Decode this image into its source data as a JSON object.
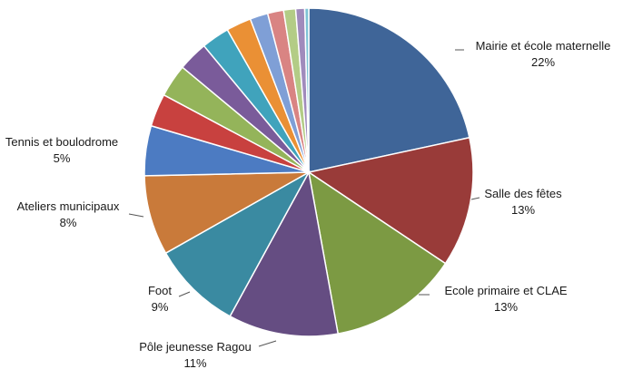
{
  "chart_data": {
    "type": "pie",
    "title": "",
    "legend": "none",
    "slices": [
      {
        "label": "Mairie et école maternelle",
        "value": 22,
        "value_label": "22%",
        "color": "#3f6598",
        "labeled": true
      },
      {
        "label": "Salle des fêtes",
        "value": 13,
        "value_label": "13%",
        "color": "#993b39",
        "labeled": true
      },
      {
        "label": "Ecole primaire et CLAE",
        "value": 13,
        "value_label": "13%",
        "color": "#7c9a43",
        "labeled": true
      },
      {
        "label": "Pôle jeunesse Ragou",
        "value": 11,
        "value_label": "11%",
        "color": "#654d82",
        "labeled": true
      },
      {
        "label": "Foot",
        "value": 9,
        "value_label": "9%",
        "color": "#3a8aa1",
        "labeled": true
      },
      {
        "label": "Ateliers municipaux",
        "value": 8,
        "value_label": "8%",
        "color": "#c97a3a",
        "labeled": true
      },
      {
        "label": "Tennis et boulodrome",
        "value": 5,
        "value_label": "5%",
        "color": "#4c7bc2",
        "labeled": true
      },
      {
        "label": "",
        "value": 3.3,
        "color": "#c8413f",
        "labeled": false
      },
      {
        "label": "",
        "value": 3.3,
        "color": "#94b45a",
        "labeled": false
      },
      {
        "label": "",
        "value": 3.0,
        "color": "#7a5b9a",
        "labeled": false
      },
      {
        "label": "",
        "value": 2.8,
        "color": "#40a3bc",
        "labeled": false
      },
      {
        "label": "",
        "value": 2.5,
        "color": "#ea9035",
        "labeled": false
      },
      {
        "label": "",
        "value": 1.8,
        "color": "#7f9fd6",
        "labeled": false
      },
      {
        "label": "",
        "value": 1.6,
        "color": "#d98483",
        "labeled": false
      },
      {
        "label": "",
        "value": 1.2,
        "color": "#b3cc86",
        "labeled": false
      },
      {
        "label": "",
        "value": 0.9,
        "color": "#a08bbc",
        "labeled": false
      },
      {
        "label": "",
        "value": 0.4,
        "color": "#7ec3d6",
        "labeled": false
      }
    ]
  }
}
